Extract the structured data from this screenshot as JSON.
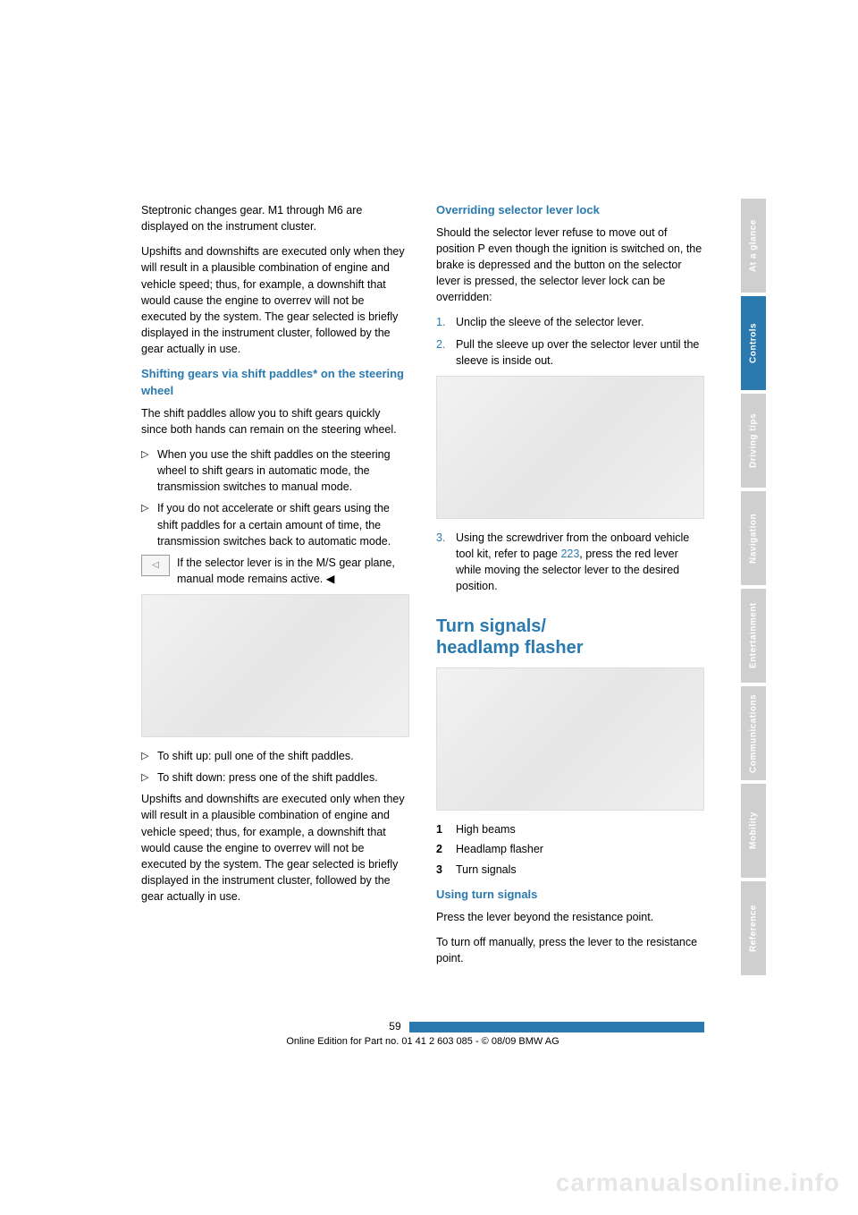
{
  "left": {
    "p1": "Steptronic changes gear. M1 through M6 are displayed on the instrument cluster.",
    "p2": "Upshifts and downshifts are executed only when they will result in a plausible combination of engine and vehicle speed; thus, for example, a downshift that would cause the engine to overrev will not be executed by the system. The gear selected is briefly displayed in the instrument cluster, followed by the gear actually in use.",
    "h1": "Shifting gears via shift paddles* on the steering wheel",
    "p3": "The shift paddles allow you to shift gears quickly since both hands can remain on the steering wheel.",
    "b1": "When you use the shift paddles on the steering wheel to shift gears in automatic mode, the transmission switches to manual mode.",
    "b2": "If you do not accelerate or shift gears using the shift paddles for a certain amount of time, the transmission switches back to automatic mode.",
    "note": "If the selector lever is in the M/S gear plane, manual mode remains active. ◀",
    "b3": "To shift up: pull one of the shift paddles.",
    "b4": "To shift down: press one of the shift paddles.",
    "p4": "Upshifts and downshifts are executed only when they will result in a plausible combination of engine and vehicle speed; thus, for example, a downshift that would cause the engine to overrev will not be executed by the system. The gear selected is briefly displayed in the instrument cluster, followed by the gear actually in use."
  },
  "right": {
    "h1": "Overriding selector lever lock",
    "p1": "Should the selector lever refuse to move out of position P even though the ignition is switched on, the brake is depressed and the button on the selector lever is pressed, the selector lever lock can be overridden:",
    "ol1": "Unclip the sleeve of the selector lever.",
    "ol2": "Pull the sleeve up over the selector lever until the sleeve is inside out.",
    "ol3a": "Using the screwdriver from the onboard vehicle tool kit, refer to page ",
    "ol3link": "223",
    "ol3b": ", press the red lever while moving the selector lever to the desired position.",
    "h2a": "Turn signals/",
    "h2b": "headlamp flasher",
    "leg1": "High beams",
    "leg2": "Headlamp flasher",
    "leg3": "Turn signals",
    "h3": "Using turn signals",
    "p2": "Press the lever beyond the resistance point.",
    "p3": "To turn off manually, press the lever to the resistance point."
  },
  "tabs": {
    "t1": "At a glance",
    "t2": "Controls",
    "t3": "Driving tips",
    "t4": "Navigation",
    "t5": "Entertainment",
    "t6": "Communications",
    "t7": "Mobility",
    "t8": "Reference"
  },
  "pagenum": "59",
  "footer": "Online Edition for Part no. 01 41 2 603 085 - © 08/09 BMW AG",
  "watermark": "carmanualsonline.info",
  "bullet": "▷"
}
